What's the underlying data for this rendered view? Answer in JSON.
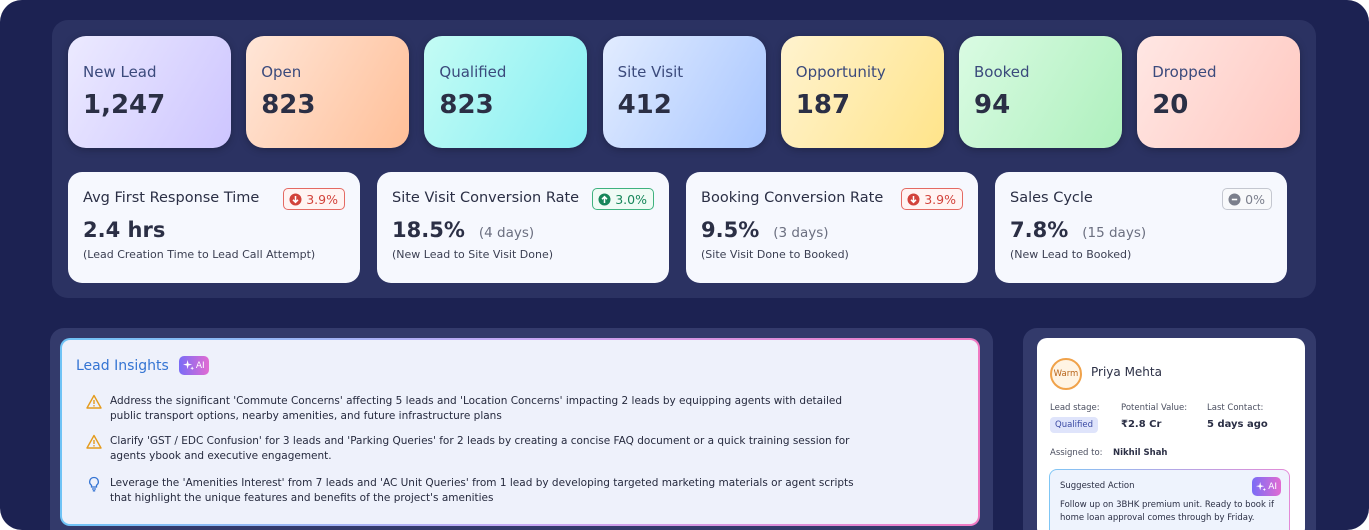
{
  "stages": [
    {
      "label": "New Lead",
      "value": "1,247"
    },
    {
      "label": "Open",
      "value": "823"
    },
    {
      "label": "Qualified",
      "value": "823"
    },
    {
      "label": "Site Visit",
      "value": "412"
    },
    {
      "label": "Opportunity",
      "value": "187"
    },
    {
      "label": "Booked",
      "value": "94"
    },
    {
      "label": "Dropped",
      "value": "20"
    }
  ],
  "metrics": [
    {
      "title": "Avg First Response Time",
      "change": "3.9%",
      "trend": "down",
      "value": "2.4 hrs",
      "detail": "(Lead Creation Time to Lead Call Attempt)"
    },
    {
      "title": "Site Visit Conversion Rate",
      "change": "3.0%",
      "trend": "up",
      "value": "18.5%",
      "note": "(4 days)",
      "detail": "(New Lead to Site Visit Done)"
    },
    {
      "title": "Booking Conversion Rate",
      "change": "3.9%",
      "trend": "down",
      "value": "9.5%",
      "note": "(3 days)",
      "detail": "(Site Visit Done to Booked)"
    },
    {
      "title": "Sales Cycle",
      "change": "0%",
      "trend": "flat",
      "value": "7.8%",
      "note": "(15 days)",
      "detail": "(New Lead to Booked)"
    }
  ],
  "insights": {
    "title": "Lead Insights",
    "badge": "AI",
    "items": [
      {
        "icon": "warning",
        "text": "Address the significant 'Commute Concerns' affecting 5 leads and 'Location Concerns' impacting 2 leads by equipping agents with detailed public transport options, nearby amenities, and future infrastructure plans"
      },
      {
        "icon": "warning",
        "text": "Clarify 'GST / EDC Confusion' for 3 leads and 'Parking Queries' for 2 leads by creating a concise FAQ document or a quick training session for agents ybook and executive engagement."
      },
      {
        "icon": "idea",
        "text": "Leverage the 'Amenities Interest' from 7 leads and 'AC Unit Queries' from 1 lead by developing targeted marketing materials or agent scripts that highlight the unique features and benefits of the project's amenities"
      }
    ]
  },
  "lead_card": {
    "temperature": "Warm",
    "name": "Priya Mehta",
    "fields": [
      {
        "label": "Lead stage:",
        "value": "Qualified"
      },
      {
        "label": "Potential Value:",
        "value": "₹2.8 Cr"
      },
      {
        "label": "Last Contact:",
        "value": "5 days ago"
      }
    ],
    "assigned_label": "Assigned to:",
    "assigned_value": "Nikhil Shah",
    "action_title": "Suggested Action",
    "action_badge": "AI",
    "action_text": "Follow up on 3BHK premium unit. Ready to book if home loan approval comes through by Friday."
  }
}
